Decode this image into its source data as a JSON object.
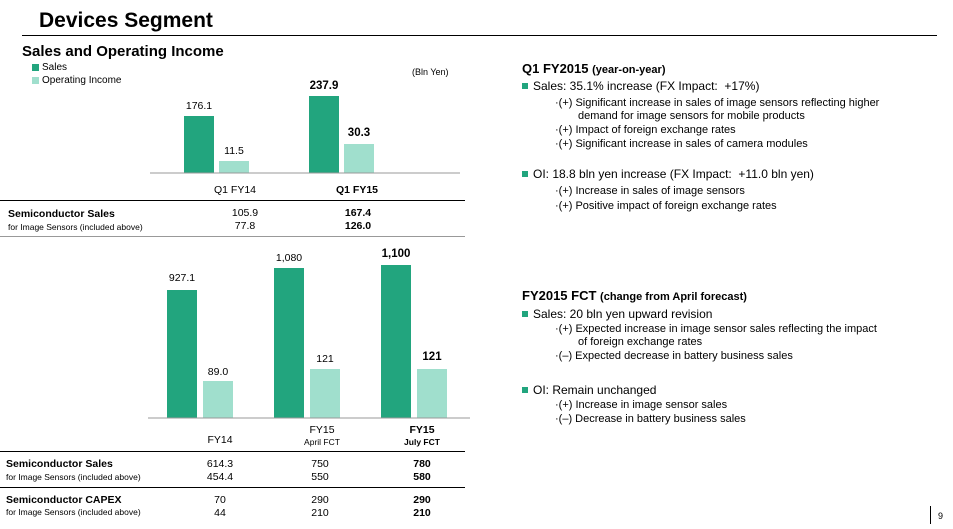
{
  "title": "Devices Segment",
  "subtitle": "Sales and Operating Income",
  "legend": [
    {
      "label": "Sales",
      "color": "#22a57e"
    },
    {
      "label": "Operating Income",
      "color": "#a0dfcd"
    }
  ],
  "unit": "(Bln Yen)",
  "colors": {
    "sales": "#22a57e",
    "oi": "#a0dfcd",
    "bullet": "#22a57e"
  },
  "chart_data": [
    {
      "type": "bar",
      "categories": [
        "Q1 FY14",
        "Q1 FY15"
      ],
      "series": [
        {
          "name": "Sales",
          "values": [
            176.1,
            237.9
          ]
        },
        {
          "name": "Operating Income",
          "values": [
            11.5,
            30.3
          ]
        }
      ],
      "value_labels": [
        [
          "176.1",
          "11.5"
        ],
        [
          "237.9",
          "30.3"
        ]
      ],
      "unit": "(Bln Yen)"
    },
    {
      "type": "bar",
      "categories": [
        "FY14",
        "FY15",
        "FY15"
      ],
      "category_subs": [
        "",
        "April FCT",
        "July FCT"
      ],
      "series": [
        {
          "name": "Sales",
          "values": [
            927.1,
            1080,
            1100
          ]
        },
        {
          "name": "Operating Income",
          "values": [
            89.0,
            121,
            121
          ]
        }
      ],
      "value_labels": [
        [
          "927.1",
          "89.0"
        ],
        [
          "1,080",
          "121"
        ],
        [
          "1,100",
          "121"
        ]
      ]
    }
  ],
  "top_table": {
    "label": "Semiconductor Sales",
    "sub": "for Image Sensors (included above)",
    "col1": [
      "105.9",
      "77.8"
    ],
    "col2": [
      "167.4",
      "126.0"
    ]
  },
  "bottom_table": {
    "rows": [
      {
        "label": "Semiconductor Sales",
        "sub": "for Image Sensors (included above)",
        "c1": [
          "614.3",
          "454.4"
        ],
        "c2": [
          "750",
          "550"
        ],
        "c3": [
          "780",
          "580"
        ]
      },
      {
        "label": "Semiconductor CAPEX",
        "sub": "for Image Sensors (included above)",
        "c1": [
          "70",
          "44"
        ],
        "c2": [
          "290",
          "210"
        ],
        "c3": [
          "290",
          "210"
        ]
      }
    ]
  },
  "right": {
    "q1": {
      "head": "Q1 FY2015",
      "head_sm": "(year-on-year)",
      "b1": "Sales: 35.1% increase (FX Impact:  +17%)",
      "b1_subs": [
        "·(+) Significant increase in sales of image sensors reflecting higher",
        "demand for image sensors for mobile products",
        "·(+) Impact of foreign exchange rates",
        "·(+) Significant increase in sales of camera modules"
      ],
      "b2": "OI: 18.8 bln yen increase (FX Impact:  +11.0 bln yen)",
      "b2_subs": [
        "·(+) Increase in sales of image sensors",
        "·(+) Positive impact of foreign exchange rates"
      ]
    },
    "fct": {
      "head": "FY2015 FCT",
      "head_sm": "(change from April forecast)",
      "b1": "Sales: 20 bln yen upward revision",
      "b1_subs": [
        "·(+) Expected increase in image sensor sales reflecting the impact",
        "of foreign exchange rates",
        "·(–) Expected decrease in battery business sales"
      ],
      "b2": "OI: Remain unchanged",
      "b2_subs": [
        "·(+) Increase in image sensor sales",
        "·(–) Decrease in battery business sales"
      ]
    }
  },
  "page_number": "9"
}
